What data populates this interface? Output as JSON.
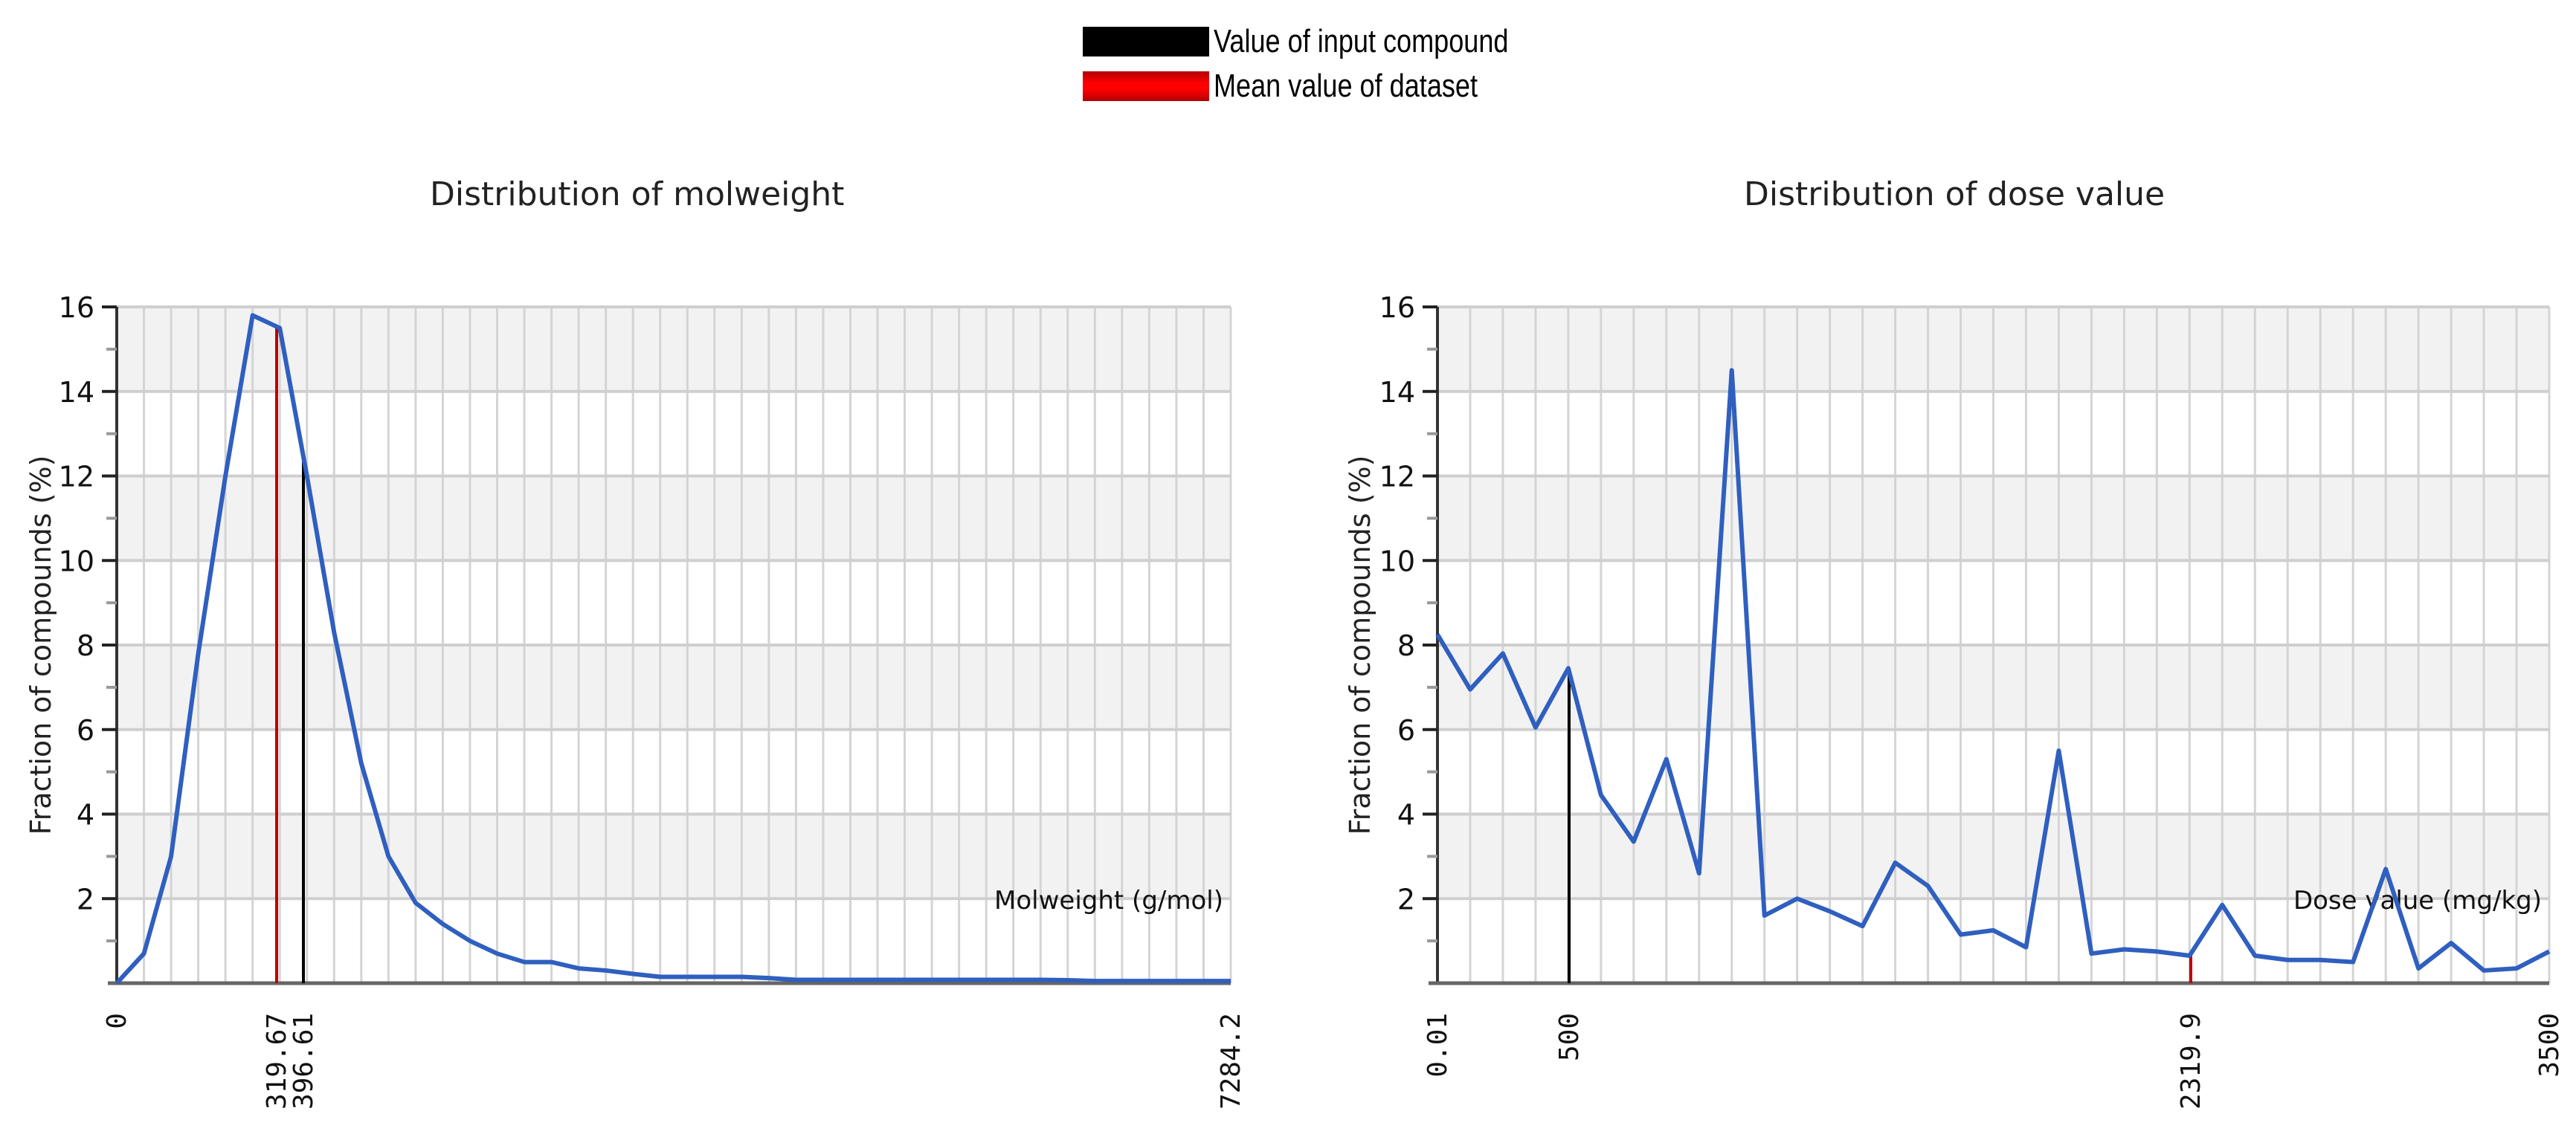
{
  "legend": {
    "items": [
      {
        "label": "Value of input compound",
        "color": "#000000"
      },
      {
        "label": "Mean value of dataset",
        "color": "#e00000"
      }
    ]
  },
  "colors": {
    "series": "#2f5fbf",
    "input_line": "#000000",
    "mean_line": "#c00000",
    "band": "#f2f2f2",
    "grid": "#d4d4d4"
  },
  "chart_data": [
    {
      "type": "line",
      "title": "Distribution of molweight",
      "xlabel": "Molweight (g/mol)",
      "ylabel": "Fraction of compounds (%)",
      "ylim": [
        0,
        16
      ],
      "yticks": [
        2,
        4,
        6,
        8,
        10,
        12,
        14,
        16
      ],
      "xlim": [
        0,
        7284.2
      ],
      "xtick_labels": [
        "0",
        "319.67",
        "396.61",
        "7284.2"
      ],
      "input_value": 396.61,
      "mean_value": 319.67,
      "grid": true,
      "n_bins": 42,
      "values": [
        0,
        0.7,
        3.0,
        7.8,
        12.0,
        15.8,
        15.5,
        12.0,
        8.3,
        5.2,
        3.0,
        1.9,
        1.4,
        1.0,
        0.7,
        0.5,
        0.5,
        0.35,
        0.3,
        0.22,
        0.15,
        0.15,
        0.15,
        0.15,
        0.12,
        0.08,
        0.08,
        0.08,
        0.08,
        0.08,
        0.08,
        0.08,
        0.08,
        0.08,
        0.08,
        0.07,
        0.05,
        0.05,
        0.05,
        0.05,
        0.05,
        0.05
      ]
    },
    {
      "type": "line",
      "title": "Distribution of dose value",
      "xlabel": "Dose value (mg/kg)",
      "ylabel": "Fraction of compounds (%)",
      "ylim": [
        0,
        16
      ],
      "yticks": [
        2,
        4,
        6,
        8,
        10,
        12,
        14,
        16
      ],
      "xlim": [
        0.01,
        3500
      ],
      "xtick_labels": [
        "0.01",
        "500",
        "2319.9",
        "3500"
      ],
      "input_value": 500,
      "mean_value": 2319.9,
      "grid": true,
      "values": [
        8.25,
        6.95,
        7.8,
        6.05,
        7.45,
        4.45,
        3.35,
        5.3,
        2.6,
        14.5,
        1.6,
        2.0,
        1.7,
        1.35,
        2.85,
        2.3,
        1.15,
        1.25,
        0.85,
        5.5,
        0.7,
        0.8,
        0.75,
        0.65,
        1.85,
        0.65,
        0.55,
        0.55,
        0.5,
        2.7,
        0.35,
        0.95,
        0.3,
        0.35,
        0.75
      ]
    }
  ]
}
